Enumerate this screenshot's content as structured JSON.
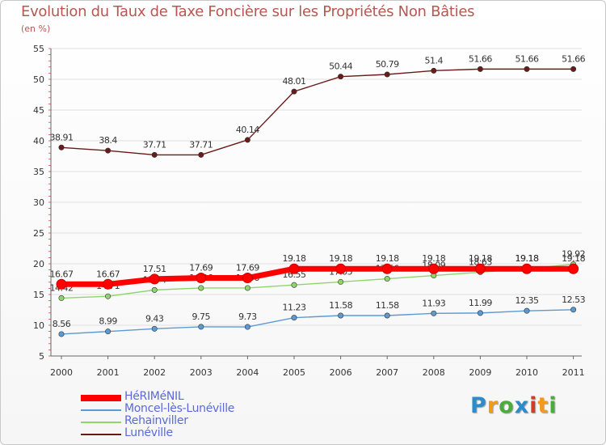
{
  "chart_data": {
    "type": "line",
    "title": "Evolution du Taux de Taxe Foncière sur les Propriétés Non Bâties",
    "subtitle": "(en %)",
    "categories": [
      "2000",
      "2001",
      "2002",
      "2003",
      "2004",
      "2005",
      "2006",
      "2007",
      "2008",
      "2009",
      "2010",
      "2011"
    ],
    "ylim": [
      5,
      55
    ],
    "yticks": [
      5,
      10,
      15,
      20,
      25,
      30,
      35,
      40,
      45,
      50,
      55
    ],
    "series": [
      {
        "name": "Lunéville",
        "color": "#6b1a1a",
        "values": [
          38.91,
          38.4,
          37.71,
          37.71,
          40.14,
          48.01,
          50.44,
          50.79,
          51.4,
          51.66,
          51.66,
          51.66
        ],
        "labels": [
          "38.91",
          "38.4",
          "37.71",
          "37.71",
          "40.14",
          "48.01",
          "50.44",
          "50.79",
          "51.4",
          "51.66",
          "51.66",
          "51.66"
        ]
      },
      {
        "name": "Rehainviller",
        "color": "#8ed66a",
        "values": [
          14.42,
          14.71,
          15.74,
          16.06,
          16.06,
          16.55,
          17.05,
          17.56,
          18.09,
          18.63,
          19.18,
          19.92
        ],
        "labels": [
          "14.42",
          "14.71",
          "15.74",
          "16.06",
          "16.06",
          "16.55",
          "17.05",
          "17.56",
          "18.09",
          "18.63",
          "19.18",
          "19.92"
        ]
      },
      {
        "name": "Moncel-lès-Lunéville",
        "color": "#5b9bd5",
        "values": [
          8.56,
          8.99,
          9.43,
          9.75,
          9.73,
          11.23,
          11.58,
          11.58,
          11.93,
          11.99,
          12.35,
          12.53
        ],
        "labels": [
          "8.56",
          "8.99",
          "9.43",
          "9.75",
          "9.73",
          "11.23",
          "11.58",
          "11.58",
          "11.93",
          "11.99",
          "12.35",
          "12.53"
        ]
      },
      {
        "name": "HéRIMéNIL",
        "color": "#ff0000",
        "values": [
          16.67,
          16.67,
          17.51,
          17.69,
          17.69,
          19.18,
          19.18,
          19.18,
          19.18,
          19.18,
          19.18,
          19.18
        ],
        "labels": [
          "16.67",
          "16.67",
          "17.51",
          "17.69",
          "17.69",
          "19.18",
          "19.18",
          "19.18",
          "19.18",
          "19.18",
          "19.18",
          "19.18"
        ]
      }
    ],
    "legend": [
      "HéRIMéNIL",
      "Moncel-lès-Lunéville",
      "Rehainviller",
      "Lunéville"
    ]
  },
  "legend_colors": [
    "#ff0000",
    "#5b9bd5",
    "#8ed66a",
    "#6b1a1a"
  ],
  "logo": {
    "letters": [
      "P",
      "r",
      "o",
      "x",
      "i",
      "t",
      "i"
    ],
    "colors": [
      "#2e8bc9",
      "#f29a1e",
      "#4bab3c",
      "#2e8bc9",
      "#d43a2a",
      "#f29a1e",
      "#4bab3c"
    ]
  }
}
